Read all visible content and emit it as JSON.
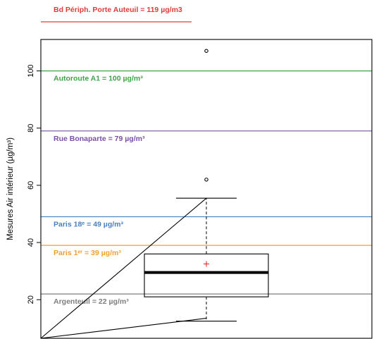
{
  "chart_data": {
    "type": "boxplot",
    "ylabel": "Mesures Air intérieur (µg/m³)",
    "ylim": [
      6.5,
      111
    ],
    "yticks": [
      20,
      40,
      60,
      80,
      100
    ],
    "yticks_labels": [
      "20",
      "40",
      "60",
      "80",
      "100"
    ],
    "box": {
      "whisker_low": 12.5,
      "q1": 21,
      "median": 29.5,
      "q3": 36,
      "whisker_high": 55.5,
      "mean": 32.5,
      "outliers": [
        62,
        107
      ]
    },
    "reference_lines": [
      {
        "label": "Bd Périph. Porte Auteuil = 119 µg/m3",
        "value": 119,
        "color": "#e03a3a"
      },
      {
        "label": "Autoroute A1 = 100 µg/m³",
        "value": 100,
        "color": "#3fa34a"
      },
      {
        "label": "Rue Bonaparte = 79 µg/m³",
        "value": 79,
        "color": "#7b4fa6"
      },
      {
        "label": "Paris 18ᵉ = 49 µg/m³",
        "value": 49,
        "color": "#4a7fbf"
      },
      {
        "label": "Paris 1ᵉʳ = 39 µg/m³",
        "value": 39,
        "color": "#f0a030"
      },
      {
        "label": "Argenteuil = 22 µg/m³",
        "value": 22,
        "color": "#7f7f7f"
      }
    ],
    "colors": {
      "mean_marker": "#e03a3a",
      "box": "#000000"
    }
  }
}
